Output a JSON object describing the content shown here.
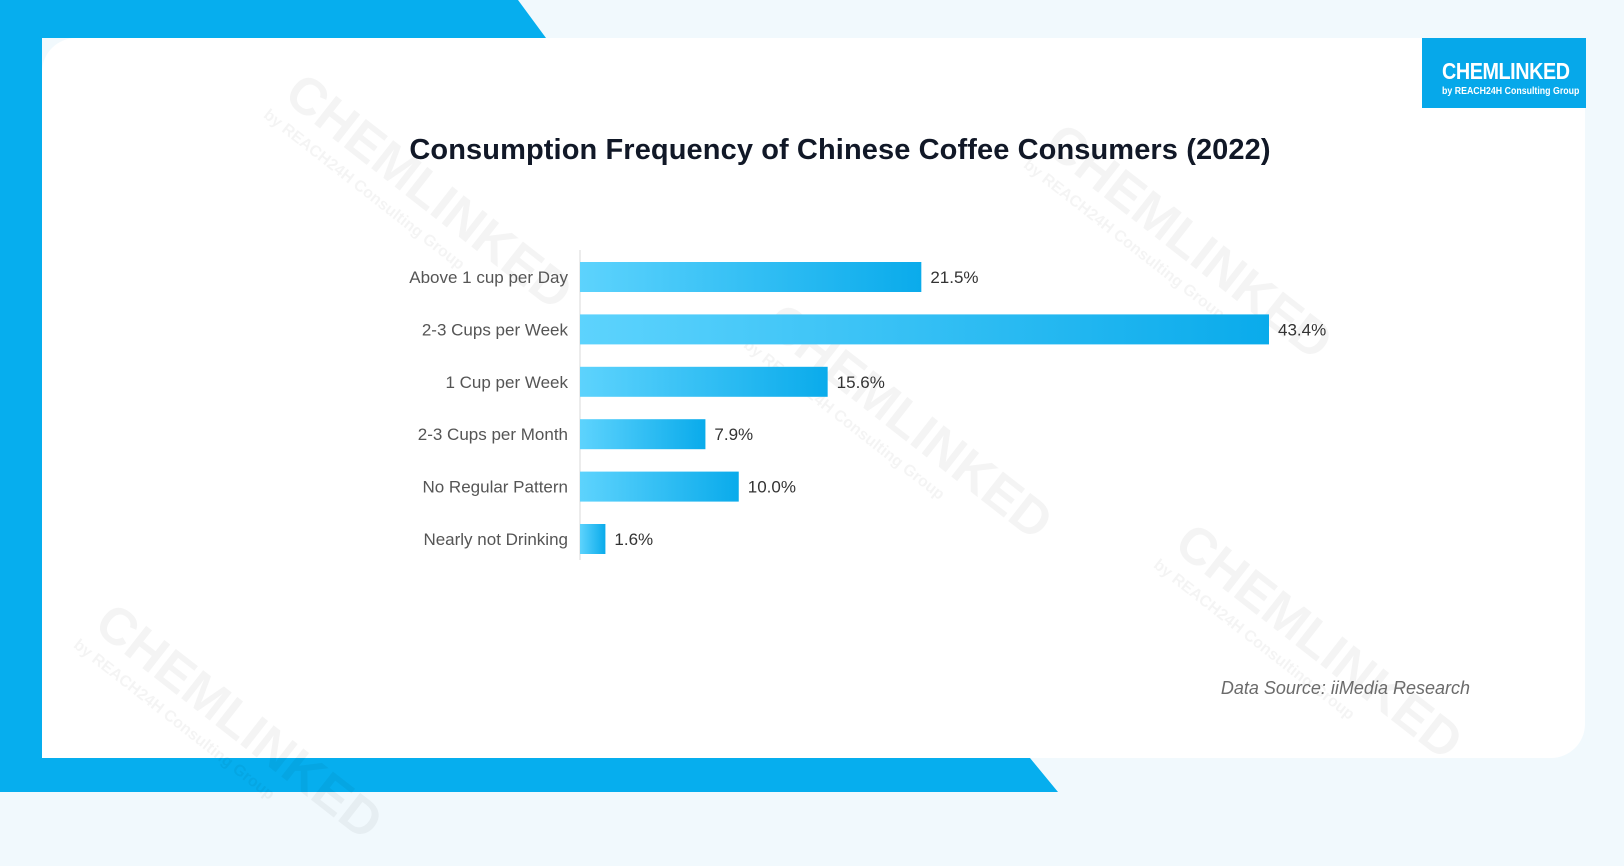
{
  "brand": {
    "logo_main": "CHEMLINKED",
    "logo_sub": "by REACH24H Consulting Group",
    "accent_color": "#06a8ea"
  },
  "watermark": {
    "main": "CHEMLINKED",
    "sub": "by REACH24H Consulting Group"
  },
  "footer": {
    "source": "Data Source: iiMedia Research"
  },
  "chart_data": {
    "type": "bar",
    "orientation": "horizontal",
    "title": "Consumption Frequency of Chinese Coffee Consumers (2022)",
    "categories": [
      "Above 1 cup per Day",
      "2-3 Cups per Week",
      "1 Cup per Week",
      "2-3 Cups per Month",
      "No Regular Pattern",
      "Nearly not Drinking"
    ],
    "values": [
      21.5,
      43.4,
      15.6,
      7.9,
      10.0,
      1.6
    ],
    "data_labels": [
      "21.5%",
      "43.4%",
      "15.6%",
      "7.9%",
      "10.0%",
      "1.6%"
    ],
    "value_unit": "%",
    "xlim": [
      0,
      43.4
    ],
    "grid": false,
    "legend": "none",
    "bar_color_start": "#5dd3fd",
    "bar_color_end": "#0aabeb"
  }
}
